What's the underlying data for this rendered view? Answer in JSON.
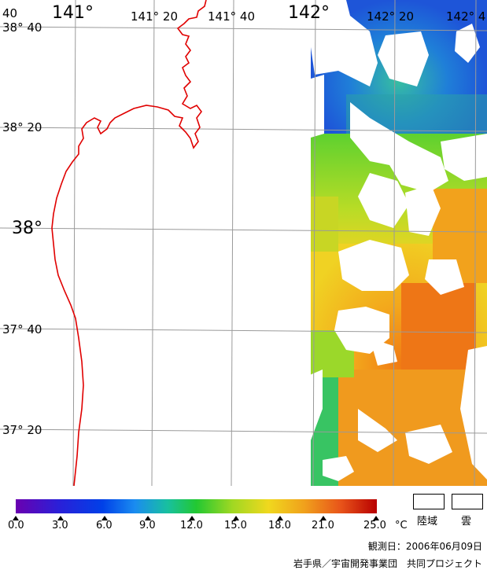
{
  "map": {
    "lat_labels": [
      "38° 40",
      "38° 20",
      "38°",
      "37° 40",
      "37° 20"
    ],
    "lon_labels": [
      "141°",
      "141° 20",
      "141° 40",
      "142°",
      "142° 20",
      "142° 4"
    ],
    "edge_label": "40",
    "colors": {
      "coast": "#e00000",
      "grid": "#9a9a9a",
      "cloud_land": "#ffffff"
    }
  },
  "colorbar": {
    "tick_labels": [
      "0.0",
      "3.0",
      "6.0",
      "9.0",
      "12.0",
      "15.0",
      "18.0",
      "21.0",
      "25.0"
    ],
    "unit": "°C",
    "min": 0.0,
    "max": 25.0
  },
  "legend": {
    "land": "陸域",
    "cloud": "雲"
  },
  "footer": {
    "observation_date": "観測日：2006年06月09日",
    "credit": "岩手県／宇宙開発事業団　共同プロジェクト"
  }
}
